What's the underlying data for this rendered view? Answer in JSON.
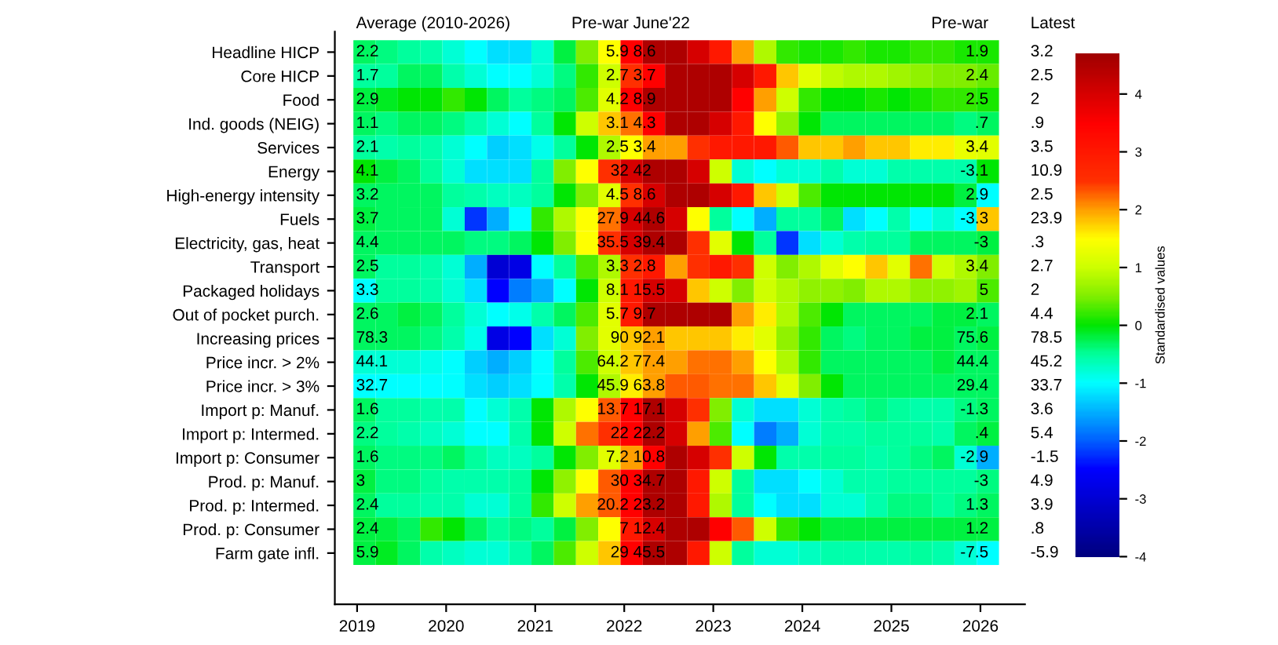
{
  "chart_data": {
    "type": "heatmap",
    "x": [
      "2019-02",
      "2019-05",
      "2019-08",
      "2019-11",
      "2020-02",
      "2020-05",
      "2020-08",
      "2020-11",
      "2021-02",
      "2021-05",
      "2021-08",
      "2021-11",
      "2022-02",
      "2022-05",
      "2022-08",
      "2022-11",
      "2023-02",
      "2023-05",
      "2023-08",
      "2023-11",
      "2024-02",
      "2024-05",
      "2024-08",
      "2024-11",
      "2025-02",
      "2025-05",
      "2025-08",
      "2025-11",
      "2026-02"
    ],
    "xlim": [
      "2018-10",
      "2026-07"
    ],
    "xticks": [
      "2019",
      "2020",
      "2021",
      "2022",
      "2023",
      "2024",
      "2025",
      "2026"
    ],
    "y_categories": [
      "Headline HICP",
      "Core HICP",
      "Food",
      "Ind. goods (NEIG)",
      "Services",
      "Energy",
      "High-energy intensity",
      "Fuels",
      "Electricity, gas, heat",
      "Transport",
      "Packaged holidays",
      "Out of pocket purch.",
      "Increasing prices",
      "Price incr. > 2%",
      "Price incr. > 3%",
      "Import p: Manuf.",
      "Import p: Intermed.",
      "Import p: Consumer",
      "Prod. p: Manuf.",
      "Prod. p: Intermed.",
      "Prod. p: Consumer",
      "Farm gate infl."
    ],
    "y2_categories": [
      "3.2",
      "2.5",
      "2",
      ".9",
      "3.5",
      "10.9",
      "2.5",
      "23.9",
      ".3",
      "2.7",
      "2",
      "4.4",
      "78.5",
      "45.2",
      "33.7",
      "3.6",
      "5.4",
      "-1.5",
      "4.9",
      "3.9",
      ".8",
      "-5.9"
    ],
    "cells": [
      [
        -0.3,
        -0.4,
        -0.5,
        -0.6,
        -0.8,
        -1.0,
        -1.2,
        -1.2,
        -0.8,
        -0.2,
        0.5,
        1.5,
        3.5,
        4.5,
        4.5,
        4.0,
        3.0,
        2.0,
        0.8,
        0.2,
        0.1,
        0.1,
        0.2,
        0.1,
        0.1,
        0.2,
        0.2,
        0.1,
        0.1
      ],
      [
        -0.5,
        -0.5,
        -0.3,
        -0.3,
        -0.6,
        -0.8,
        -1.0,
        -1.0,
        -0.8,
        -0.4,
        0.2,
        1.0,
        2.5,
        3.5,
        4.5,
        4.5,
        4.5,
        4.0,
        3.0,
        1.8,
        1.2,
        0.9,
        0.8,
        0.8,
        0.7,
        0.6,
        0.5,
        0.5,
        0.4
      ],
      [
        -0.2,
        -0.1,
        0,
        0,
        0.2,
        0,
        -0.3,
        -0.5,
        -0.4,
        -0.3,
        0.3,
        1.2,
        3.5,
        4.5,
        4.5,
        4.5,
        4.5,
        3.5,
        2.0,
        1.0,
        0.2,
        0,
        0,
        0.1,
        0,
        0.1,
        0.2,
        0.2,
        0.1
      ],
      [
        -0.3,
        -0.4,
        -0.3,
        -0.3,
        -0.4,
        -0.6,
        -0.8,
        -1.0,
        -0.5,
        0,
        1.0,
        1.8,
        2.2,
        3.5,
        4.5,
        4.5,
        4.0,
        3.0,
        1.5,
        0.6,
        0,
        -0.3,
        -0.3,
        -0.3,
        -0.3,
        -0.3,
        -0.3,
        -0.4,
        -0.3
      ],
      [
        -0.5,
        -0.6,
        -0.5,
        -0.6,
        -0.8,
        -1.0,
        -1.3,
        -1.2,
        -0.9,
        -0.5,
        0,
        0.8,
        1.5,
        2.0,
        2.0,
        2.5,
        3.0,
        3.0,
        3.0,
        2.3,
        1.8,
        1.8,
        2.0,
        1.8,
        1.8,
        1.6,
        1.6,
        1.3,
        1.2
      ],
      [
        0,
        -0.2,
        -0.3,
        -0.5,
        -0.8,
        -1.2,
        -1.2,
        -1.2,
        -0.5,
        0.5,
        1.5,
        2.5,
        4.0,
        4.5,
        4.5,
        4.0,
        1.0,
        -0.8,
        -1.0,
        -0.8,
        -0.8,
        -0.6,
        -0.8,
        -0.8,
        -0.6,
        -0.6,
        -0.6,
        -0.6,
        0.0
      ],
      [
        -0.3,
        -0.3,
        -0.3,
        -0.3,
        -0.5,
        -0.6,
        -0.7,
        -0.7,
        -0.5,
        0,
        0.5,
        1.2,
        2.5,
        4.0,
        4.5,
        4.5,
        4.0,
        3.0,
        1.8,
        1.0,
        0.3,
        0,
        0,
        0,
        0,
        0,
        0,
        -0.2,
        -1.0
      ],
      [
        -0.2,
        -0.3,
        -0.3,
        -0.3,
        -0.8,
        -2.2,
        -1.5,
        -1.0,
        0.2,
        0.8,
        1.5,
        2.2,
        4.0,
        4.5,
        4.0,
        1.5,
        -0.5,
        -1.0,
        -1.5,
        -0.5,
        -0.5,
        -0.3,
        -1.2,
        -1.0,
        -0.6,
        -1.0,
        -0.8,
        -1.0,
        1.8
      ],
      [
        -0.3,
        -0.3,
        -0.3,
        -0.3,
        -0.3,
        -0.4,
        -0.4,
        -0.3,
        0,
        0.5,
        1.5,
        2.5,
        4.0,
        4.5,
        4.5,
        2.5,
        1.2,
        0,
        -0.5,
        -2.2,
        -1.2,
        -0.8,
        -0.6,
        -0.5,
        -0.5,
        -0.3,
        -0.3,
        -0.3,
        -0.2
      ],
      [
        -0.3,
        -0.5,
        -0.5,
        -0.6,
        -0.8,
        -1.5,
        -3.0,
        -2.8,
        -1.0,
        -0.5,
        0.3,
        0.8,
        2.5,
        3.0,
        2.0,
        2.5,
        3.0,
        2.5,
        1.0,
        0.5,
        0.8,
        1.2,
        1.5,
        1.8,
        1.2,
        2.2,
        1.0,
        0.8,
        0.5
      ],
      [
        -1.0,
        -0.5,
        -0.5,
        -0.6,
        -0.8,
        -1.2,
        -2.5,
        -1.8,
        -1.5,
        -1.0,
        0,
        1.0,
        3.0,
        4.0,
        4.0,
        1.8,
        1.0,
        0.5,
        1.0,
        0.8,
        0.6,
        0.6,
        0.5,
        0.8,
        0.8,
        0.6,
        0.6,
        0.7,
        0.3
      ],
      [
        -0.3,
        -0.3,
        -0.2,
        -0.3,
        -0.5,
        -0.8,
        -1.0,
        -0.9,
        -0.6,
        -0.3,
        0.3,
        1.2,
        3.0,
        4.5,
        4.5,
        4.5,
        4.5,
        2.0,
        1.6,
        0.8,
        0.3,
        0,
        -0.3,
        -0.3,
        -0.3,
        -0.3,
        -0.2,
        -0.2,
        -0.3
      ],
      [
        -0.3,
        -0.3,
        -0.3,
        -0.4,
        -0.6,
        -0.9,
        -2.8,
        -2.5,
        -1.2,
        -0.8,
        0.5,
        1.2,
        1.8,
        2.0,
        1.8,
        1.8,
        1.8,
        1.6,
        1.2,
        0.6,
        0.2,
        -0.3,
        -0.4,
        -0.3,
        -0.3,
        -0.2,
        -0.2,
        -0.3,
        -0.2
      ],
      [
        -0.8,
        -0.8,
        -0.8,
        -0.9,
        -1.0,
        -1.3,
        -1.5,
        -1.3,
        -1.0,
        -0.5,
        0.3,
        1.0,
        1.8,
        2.0,
        2.0,
        2.2,
        2.2,
        2.0,
        1.5,
        0.8,
        0.2,
        -0.3,
        -0.3,
        -0.3,
        -0.3,
        -0.3,
        -0.2,
        -0.3,
        -0.3
      ],
      [
        -1.0,
        -1.0,
        -1.0,
        -1.0,
        -1.0,
        -1.2,
        -1.3,
        -1.2,
        -1.0,
        -0.6,
        0,
        0.8,
        1.6,
        2.0,
        2.3,
        2.3,
        2.2,
        2.2,
        1.8,
        1.2,
        0.5,
        0,
        -0.3,
        -0.3,
        -0.3,
        -0.3,
        -0.3,
        -0.3,
        -0.3
      ],
      [
        -0.3,
        -0.5,
        -0.5,
        -0.6,
        -0.6,
        -1.0,
        -0.8,
        -0.6,
        0,
        0.8,
        1.5,
        2.3,
        3.5,
        4.5,
        4.0,
        2.5,
        0.5,
        -0.8,
        -1.2,
        -1.2,
        -0.8,
        -0.6,
        -0.5,
        -0.4,
        -0.5,
        -0.6,
        -0.6,
        -0.4,
        -0.3
      ],
      [
        -0.4,
        -0.5,
        -0.6,
        -0.7,
        -0.8,
        -1.0,
        -1.0,
        -0.6,
        0,
        1.0,
        2.2,
        2.5,
        3.5,
        4.5,
        4.0,
        2.0,
        0.3,
        -1.0,
        -1.8,
        -1.5,
        -0.8,
        -0.6,
        -0.6,
        -0.5,
        -0.5,
        -0.5,
        -0.6,
        -0.3,
        -0.2
      ],
      [
        -0.3,
        -0.4,
        -0.4,
        -0.4,
        -0.3,
        -0.5,
        -0.7,
        -0.7,
        -0.5,
        0,
        0.5,
        1.2,
        2.0,
        3.5,
        4.5,
        4.0,
        2.5,
        1.0,
        0,
        -0.6,
        -0.6,
        -0.5,
        -0.5,
        -0.6,
        -0.5,
        -0.4,
        -0.3,
        -0.8,
        -1.5
      ],
      [
        -0.2,
        -0.4,
        -0.4,
        -0.5,
        -0.6,
        -0.6,
        -0.6,
        -0.5,
        0,
        0.6,
        1.5,
        2.3,
        3.5,
        4.5,
        4.5,
        3.0,
        1.0,
        -0.5,
        -1.2,
        -1.2,
        -1.0,
        -0.8,
        -0.6,
        -0.6,
        -0.5,
        -0.5,
        -0.5,
        -0.5,
        -0.4
      ],
      [
        -0.3,
        -0.5,
        -0.5,
        -0.6,
        -0.6,
        -0.8,
        -0.8,
        -0.5,
        0.2,
        1.0,
        2.0,
        2.3,
        3.5,
        4.5,
        4.5,
        3.0,
        0.8,
        -0.5,
        -1.0,
        -1.2,
        -1.2,
        -0.8,
        -0.8,
        -0.6,
        -0.4,
        -0.4,
        -0.5,
        -0.4,
        -0.3
      ],
      [
        -0.2,
        -0.2,
        -0.3,
        0.2,
        0,
        -0.3,
        -0.5,
        -0.4,
        -0.5,
        -0.2,
        0.5,
        1.5,
        3.0,
        4.0,
        4.5,
        4.5,
        3.5,
        2.3,
        1.0,
        0.2,
        0,
        -0.2,
        -0.2,
        -0.2,
        -0.2,
        -0.2,
        -0.2,
        -0.2,
        -0.2
      ],
      [
        -0.2,
        -0.1,
        -0.3,
        -0.6,
        -0.7,
        -0.8,
        -0.8,
        -0.6,
        -0.3,
        0.3,
        1.0,
        1.8,
        3.5,
        4.5,
        4.5,
        3.0,
        1.0,
        -0.5,
        -0.8,
        -0.8,
        -0.7,
        -0.6,
        -0.6,
        -0.6,
        -0.6,
        -0.5,
        -0.6,
        -0.8,
        -1.0
      ]
    ],
    "clim": [
      -4,
      4.7
    ],
    "cticks": [
      -4,
      -3,
      -2,
      -1,
      0,
      1,
      2,
      3,
      4
    ],
    "clabel": "Standardised values",
    "annotations": [
      "Average (2010-2026)",
      "Pre-war",
      "June'22",
      "Pre-war",
      "Latest",
      "2.2",
      "5.9",
      "8.6",
      "1.9",
      "1.7",
      "2.7",
      "3.7",
      "2.4",
      "2.9",
      "4.2",
      "8.9",
      "2.5",
      "1.1",
      "3.1",
      "4.3",
      ".7",
      "2.1",
      "2.5",
      "3.4",
      "3.4",
      "4.1",
      "32",
      "42",
      "-3.1",
      "3.2",
      "4.5",
      "8.6",
      "2.9",
      "3.7",
      "27.9",
      "44.6",
      "-3.3",
      "4.4",
      "35.5",
      "39.4",
      "-3",
      "2.5",
      "3.3",
      "2.8",
      "3.4",
      "3.3",
      "8.1",
      "15.5",
      "5",
      "2.6",
      "5.7",
      "9.7",
      "2.1",
      "78.3",
      "90",
      "92.1",
      "75.6",
      "44.1",
      "64.2",
      "77.4",
      "44.4",
      "32.7",
      "45.9",
      "63.8",
      "29.4",
      "1.6",
      "13.7",
      "17.1",
      "-1.3",
      "2.2",
      "22",
      "22.2",
      ".4",
      "1.6",
      "7.2",
      "10.8",
      "-2.9",
      "3",
      "30",
      "34.7",
      "-3",
      "2.4",
      "20.2",
      "23.2",
      "1.3",
      "2.4",
      "7",
      "12.4",
      "1.2",
      "5.9",
      "29",
      "45.5",
      "-7.5"
    ]
  }
}
